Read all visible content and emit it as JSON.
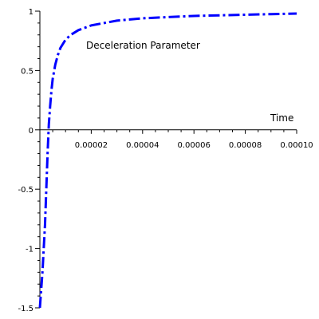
{
  "chart_data": {
    "type": "line",
    "title": "",
    "xlabel": "Time",
    "ylabel": "",
    "xlim": [
      0,
      0.0001
    ],
    "ylim": [
      -1.5,
      1
    ],
    "x_ticks": [
      2e-05,
      4e-05,
      6e-05,
      8e-05,
      0.0001
    ],
    "x_tick_labels": [
      "0.00002",
      "0.00004",
      "0.00006",
      "0.00008",
      "0.00010"
    ],
    "y_ticks": [
      -1.5,
      -1,
      -0.5,
      0,
      0.5,
      1
    ],
    "y_tick_labels": [
      "-1.5",
      "-1",
      "-0.5",
      "0",
      "0.5",
      "1"
    ],
    "grid": false,
    "annotation": "Deceleration Parameter",
    "series": [
      {
        "color": "#0000ff",
        "line_style": "dash-dot",
        "x": [
          0,
          1e-06,
          2e-06,
          2.5e-06,
          3e-06,
          3.5e-06,
          4e-06,
          4.5e-06,
          5e-06,
          6e-06,
          7e-06,
          8e-06,
          1e-05,
          1.2e-05,
          1.5e-05,
          2e-05,
          2.5e-05,
          3e-05,
          4e-05,
          5e-05,
          6e-05,
          7e-05,
          8e-05,
          9e-05,
          0.0001
        ],
        "y": [
          -1.5,
          -1.2,
          -0.8,
          -0.5,
          -0.2,
          0.05,
          0.2,
          0.33,
          0.43,
          0.55,
          0.63,
          0.69,
          0.76,
          0.8,
          0.84,
          0.88,
          0.9,
          0.92,
          0.94,
          0.95,
          0.96,
          0.965,
          0.97,
          0.975,
          0.98
        ]
      }
    ]
  }
}
